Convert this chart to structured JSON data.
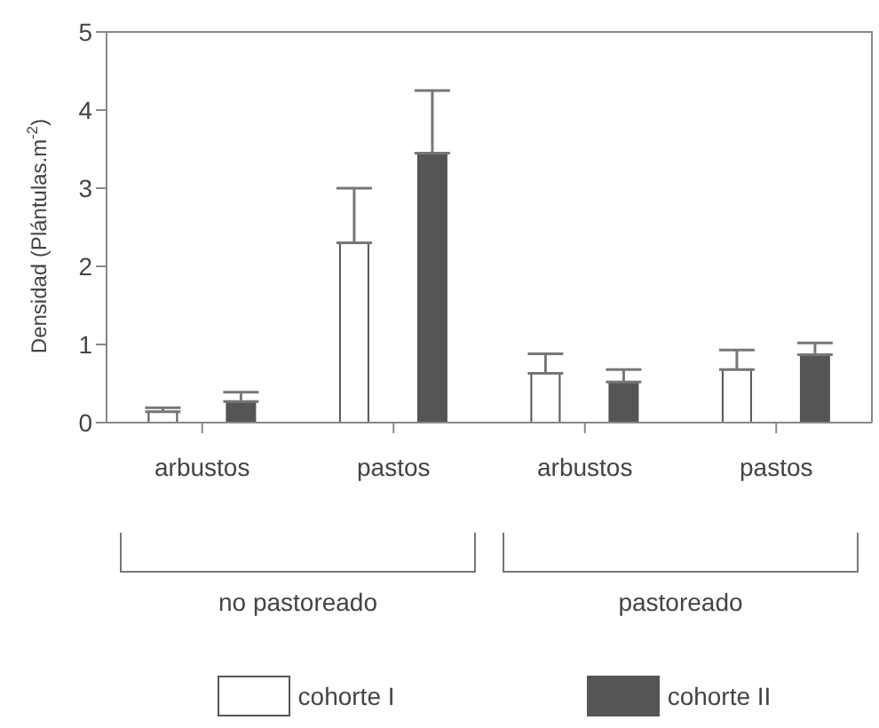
{
  "chart_data": {
    "type": "bar",
    "ylabel": "Densidad (Plántulas.m$^{-2}$)",
    "categories": [
      "arbustos",
      "pastos",
      "arbustos",
      "pastos"
    ],
    "series": [
      {
        "name": "cohorte I",
        "color": "#ffffff",
        "values": [
          0.14,
          2.3,
          0.63,
          0.68
        ],
        "errors": [
          [
            0.14,
            0.19
          ],
          [
            2.3,
            3.0
          ],
          [
            0.63,
            0.88
          ],
          [
            0.68,
            0.93
          ]
        ]
      },
      {
        "name": "cohorte II",
        "color": "#555555",
        "values": [
          0.27,
          3.45,
          0.52,
          0.87
        ],
        "errors": [
          [
            0.27,
            0.39
          ],
          [
            3.45,
            4.25
          ],
          [
            0.52,
            0.68
          ],
          [
            0.87,
            1.02
          ]
        ]
      }
    ],
    "ylim": [
      0,
      5
    ],
    "yticks": [
      0,
      1,
      2,
      3,
      4,
      5
    ],
    "grid": false,
    "legend": "bottom",
    "annotations": [
      "no pastoreado",
      "pastoreado"
    ]
  }
}
